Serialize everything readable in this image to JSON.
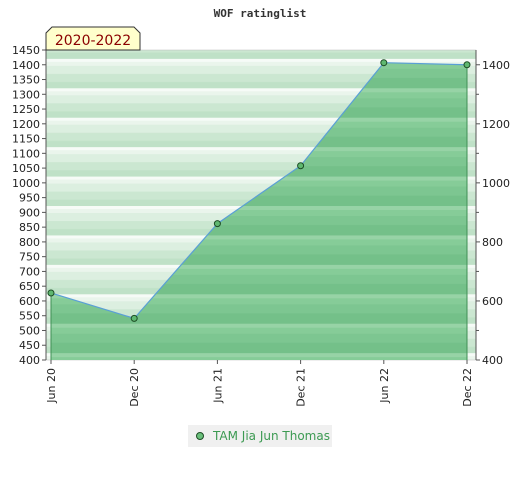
{
  "chart_data": {
    "type": "area",
    "title": "WOF ratinglist",
    "period_badge": "2020-2022",
    "categories": [
      "Jun 20",
      "Dec 20",
      "Jun 21",
      "Dec 21",
      "Jun 22",
      "Dec 22"
    ],
    "series": [
      {
        "name": "TAM Jia Jun Thomas",
        "values": [
          627,
          541,
          862,
          1058,
          1407,
          1400
        ]
      }
    ],
    "ylim": [
      400,
      1450
    ],
    "y_left_ticks": [
      400,
      450,
      500,
      550,
      600,
      650,
      700,
      750,
      800,
      850,
      900,
      950,
      1000,
      1050,
      1100,
      1150,
      1200,
      1250,
      1300,
      1350,
      1400,
      1450
    ],
    "y_right_ticks": [
      400,
      600,
      800,
      1000,
      1200,
      1400
    ],
    "legend_position": "bottom-center",
    "colors": {
      "fill": "#7cc690",
      "line": "#5a9fd6",
      "marker": "#5fb870",
      "marker_border": "#1d4d25",
      "badge_bg": "#ffffcc",
      "badge_text": "#8b0000",
      "legend_text": "#3c9a52"
    }
  }
}
